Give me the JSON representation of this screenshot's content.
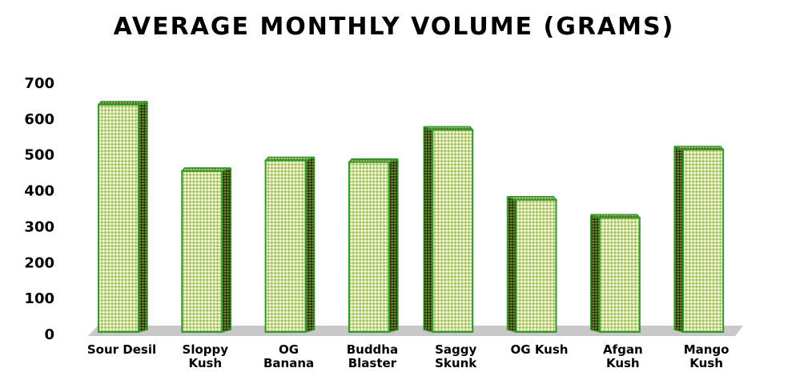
{
  "chart_data": {
    "type": "bar",
    "title": "AVERAGE MONTHLY VOLUME (GRAMS)",
    "xlabel": "",
    "ylabel": "",
    "ylim": [
      0,
      700
    ],
    "yticks": [
      "0",
      "100",
      "200",
      "300",
      "400",
      "500",
      "600",
      "700"
    ],
    "grid": false,
    "legend": "none",
    "style": "3d-column",
    "categories": [
      [
        "Sour Desil"
      ],
      [
        "Sloppy",
        "Kush"
      ],
      [
        "OG",
        "Banana"
      ],
      [
        "Buddha",
        "Blaster"
      ],
      [
        "Saggy",
        "Skunk"
      ],
      [
        "OG Kush"
      ],
      [
        "Afgan",
        "Kush"
      ],
      [
        "Mango",
        "Kush"
      ]
    ],
    "values": [
      640,
      455,
      485,
      480,
      570,
      375,
      325,
      515
    ],
    "colors": {
      "bar_outline": "#2f9a2a",
      "bar_fill_light": "#f3f7dc",
      "bar_fill_dark": "#9fbf5a",
      "side_dark": "#2e3f12",
      "floor": "#c8c8c8"
    }
  }
}
